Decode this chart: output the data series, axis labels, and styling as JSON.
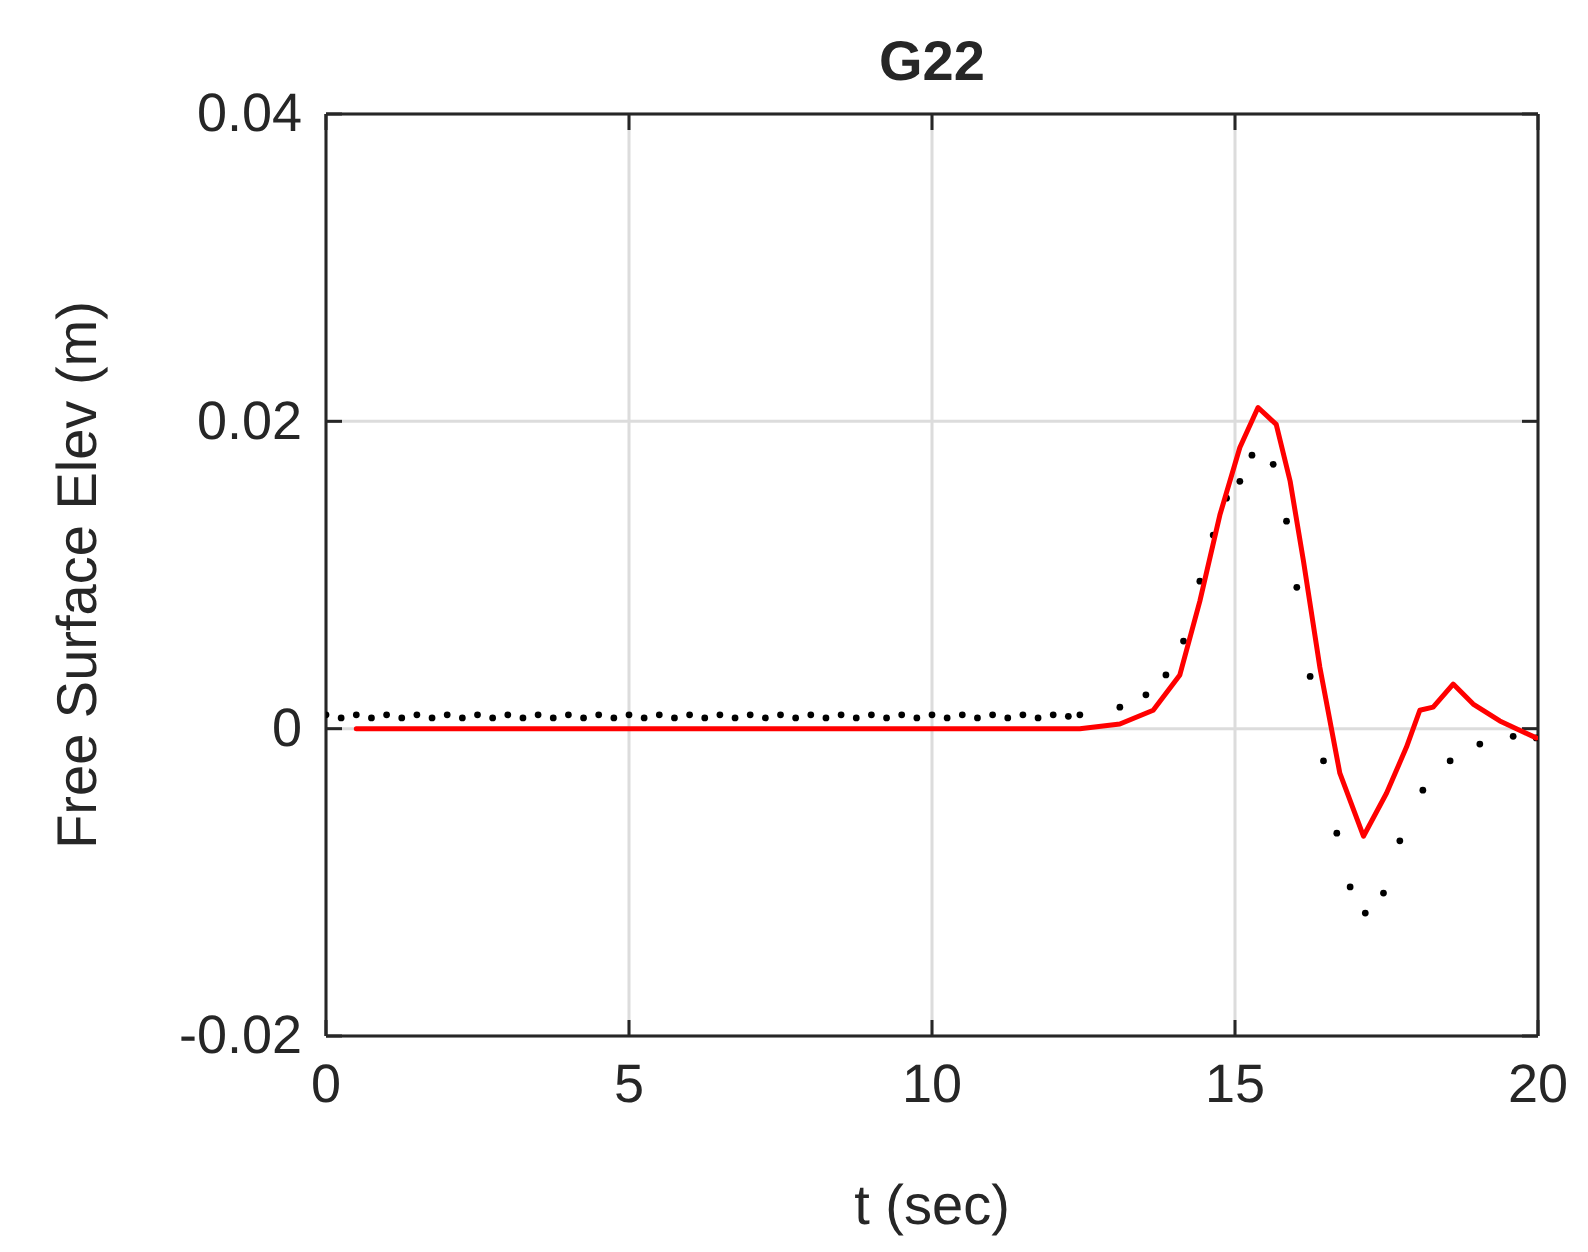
{
  "chart_data": {
    "type": "line",
    "title": "G22",
    "xlabel": "t (sec)",
    "ylabel": "Free Surface Elev (m)",
    "xlim": [
      0,
      20
    ],
    "xticks": [
      0,
      5,
      10,
      15,
      20
    ],
    "ylim": [
      -0.02,
      0.04
    ],
    "yticks": [
      -0.02,
      0,
      0.02,
      0.04
    ],
    "grid": true,
    "series": [
      {
        "type": "scatter",
        "marker": "circle",
        "color": "#000000",
        "x": [
          0,
          0.25,
          0.5,
          0.75,
          1,
          1.25,
          1.5,
          1.75,
          2,
          2.25,
          2.5,
          2.75,
          3,
          3.25,
          3.5,
          3.75,
          4,
          4.25,
          4.5,
          4.75,
          5,
          5.25,
          5.5,
          5.75,
          6,
          6.25,
          6.5,
          6.75,
          7,
          7.25,
          7.5,
          7.75,
          8,
          8.25,
          8.5,
          8.75,
          9,
          9.25,
          9.5,
          9.75,
          10,
          10.25,
          10.5,
          10.75,
          11,
          11.25,
          11.5,
          11.75,
          12,
          12.25,
          12.44,
          13.1,
          13.53,
          13.86,
          14.15,
          14.42,
          14.64,
          14.86,
          15.08,
          15.28,
          15.63,
          15.85,
          16.02,
          16.24,
          16.46,
          16.68,
          16.9,
          17.15,
          17.45,
          17.72,
          18.1,
          18.55,
          19.04,
          19.59,
          19.97
        ],
        "values": [
          0.0009,
          0.0007,
          0.0009,
          0.0007,
          0.0009,
          0.0007,
          0.0009,
          0.0007,
          0.0009,
          0.0007,
          0.0009,
          0.0007,
          0.0009,
          0.0007,
          0.0009,
          0.0007,
          0.0009,
          0.0007,
          0.0009,
          0.0007,
          0.0009,
          0.0007,
          0.0009,
          0.0007,
          0.0009,
          0.0007,
          0.0009,
          0.0007,
          0.0009,
          0.0007,
          0.0009,
          0.0007,
          0.0009,
          0.0007,
          0.0009,
          0.0007,
          0.0009,
          0.0007,
          0.0009,
          0.0007,
          0.0009,
          0.0007,
          0.0009,
          0.0007,
          0.0009,
          0.0007,
          0.0009,
          0.0007,
          0.0009,
          0.0008,
          0.0009,
          0.0014,
          0.0022,
          0.0035,
          0.0057,
          0.0096,
          0.0126,
          0.015,
          0.0161,
          0.0178,
          0.0172,
          0.0135,
          0.0092,
          0.0034,
          -0.0021,
          -0.0068,
          -0.0103,
          -0.012,
          -0.0107,
          -0.0073,
          -0.004,
          -0.0021,
          -0.001,
          -0.0005,
          -0.0006
        ]
      },
      {
        "marker": "none",
        "line_style": "solid",
        "color": "#ff0000",
        "x": [
          0.5,
          5,
          10,
          12.44,
          13.1,
          13.65,
          14.09,
          14.42,
          14.75,
          15.08,
          15.38,
          15.68,
          15.91,
          16.13,
          16.4,
          16.73,
          17.12,
          17.5,
          17.83,
          18.05,
          18.27,
          18.6,
          18.93,
          19.37,
          19.97
        ],
        "values": [
          0,
          0,
          0,
          0,
          0.0003,
          0.0012,
          0.0035,
          0.0083,
          0.0139,
          0.0183,
          0.0209,
          0.0198,
          0.0161,
          0.0109,
          0.004,
          -0.0029,
          -0.007,
          -0.0042,
          -0.0012,
          0.0012,
          0.0014,
          0.0029,
          0.0016,
          0.0005,
          -0.0006
        ]
      }
    ]
  }
}
